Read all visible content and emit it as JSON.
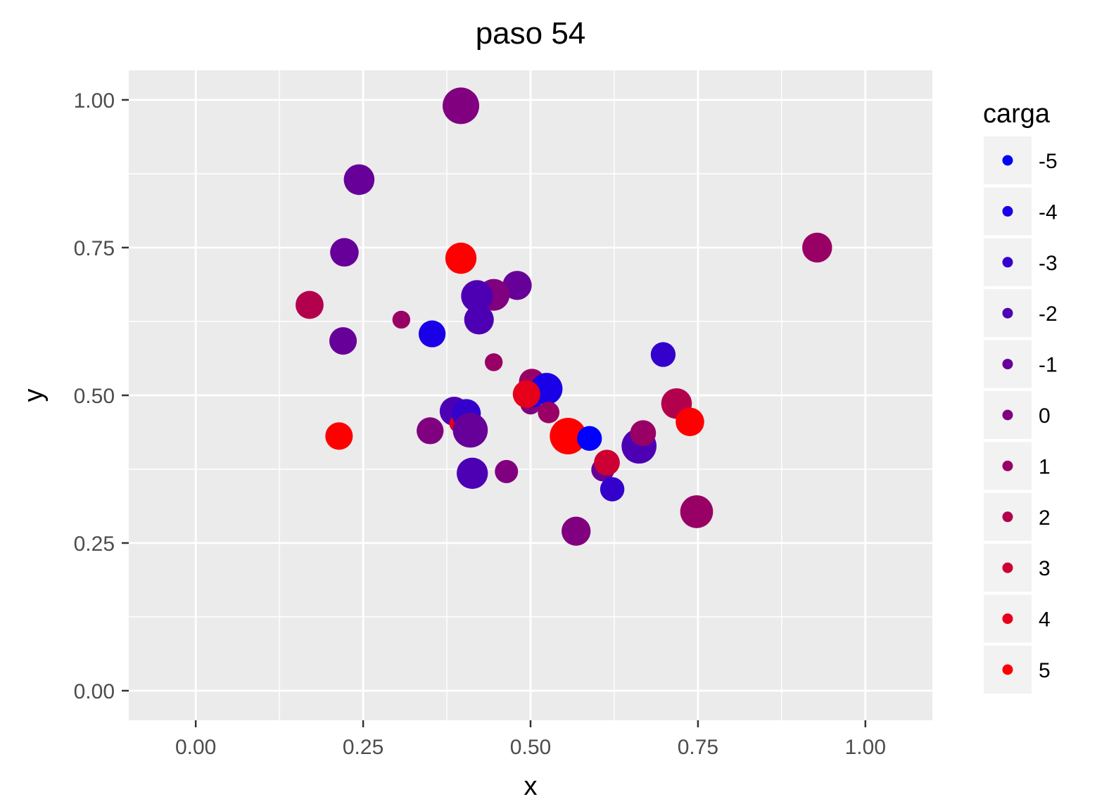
{
  "chart_data": {
    "type": "scatter",
    "title": "paso 54",
    "xlabel": "x",
    "ylabel": "y",
    "xlim": [
      -0.1,
      1.1
    ],
    "ylim": [
      -0.05,
      1.05
    ],
    "x_ticks": [
      "0.00",
      "0.25",
      "0.50",
      "0.75",
      "1.00"
    ],
    "y_ticks": [
      "0.00",
      "0.25",
      "0.50",
      "0.75",
      "1.00"
    ],
    "grid": true,
    "legend": {
      "title": "carga",
      "position": "right",
      "entries": [
        {
          "label": "-5",
          "color": "#0000ff"
        },
        {
          "label": "-4",
          "color": "#1a00e6"
        },
        {
          "label": "-3",
          "color": "#3300cc"
        },
        {
          "label": "-2",
          "color": "#4d00b3"
        },
        {
          "label": "-1",
          "color": "#660099"
        },
        {
          "label": "0",
          "color": "#800080"
        },
        {
          "label": "1",
          "color": "#990066"
        },
        {
          "label": "2",
          "color": "#b3004d"
        },
        {
          "label": "3",
          "color": "#cc0033"
        },
        {
          "label": "4",
          "color": "#e6001a"
        },
        {
          "label": "5",
          "color": "#ff0000"
        }
      ]
    },
    "points": [
      {
        "x": 0.396,
        "y": 0.99,
        "carga": 0,
        "size": 1.0
      },
      {
        "x": 0.244,
        "y": 0.865,
        "carga": -1,
        "size": 0.78
      },
      {
        "x": 0.222,
        "y": 0.742,
        "carga": -1,
        "size": 0.7
      },
      {
        "x": 0.396,
        "y": 0.732,
        "carga": 5,
        "size": 0.8
      },
      {
        "x": 0.928,
        "y": 0.75,
        "carga": 1,
        "size": 0.75
      },
      {
        "x": 0.17,
        "y": 0.653,
        "carga": 2,
        "size": 0.68
      },
      {
        "x": 0.48,
        "y": 0.686,
        "carga": -1,
        "size": 0.72
      },
      {
        "x": 0.445,
        "y": 0.67,
        "carga": 0,
        "size": 0.82
      },
      {
        "x": 0.42,
        "y": 0.668,
        "carga": -2,
        "size": 0.82
      },
      {
        "x": 0.423,
        "y": 0.628,
        "carga": -2,
        "size": 0.74
      },
      {
        "x": 0.307,
        "y": 0.628,
        "carga": 1,
        "size": 0.3
      },
      {
        "x": 0.22,
        "y": 0.592,
        "carga": -1,
        "size": 0.66
      },
      {
        "x": 0.353,
        "y": 0.604,
        "carga": -4,
        "size": 0.64
      },
      {
        "x": 0.445,
        "y": 0.556,
        "carga": 1,
        "size": 0.3
      },
      {
        "x": 0.698,
        "y": 0.569,
        "carga": -3,
        "size": 0.56
      },
      {
        "x": 0.502,
        "y": 0.523,
        "carga": 1,
        "size": 0.6
      },
      {
        "x": 0.524,
        "y": 0.511,
        "carga": -4,
        "size": 0.82
      },
      {
        "x": 0.5,
        "y": 0.485,
        "carga": 0,
        "size": 0.4
      },
      {
        "x": 0.527,
        "y": 0.471,
        "carga": 1,
        "size": 0.44
      },
      {
        "x": 0.505,
        "y": 0.5,
        "carga": -4,
        "size": 0.5
      },
      {
        "x": 0.494,
        "y": 0.502,
        "carga": 4,
        "size": 0.66
      },
      {
        "x": 0.718,
        "y": 0.486,
        "carga": 2,
        "size": 0.78
      },
      {
        "x": 0.738,
        "y": 0.455,
        "carga": 5,
        "size": 0.7
      },
      {
        "x": 0.386,
        "y": 0.473,
        "carga": -2,
        "size": 0.72
      },
      {
        "x": 0.392,
        "y": 0.452,
        "carga": 4,
        "size": 0.3
      },
      {
        "x": 0.404,
        "y": 0.469,
        "carga": -3,
        "size": 0.72
      },
      {
        "x": 0.41,
        "y": 0.441,
        "carga": -1,
        "size": 0.94
      },
      {
        "x": 0.35,
        "y": 0.44,
        "carga": 0,
        "size": 0.64
      },
      {
        "x": 0.214,
        "y": 0.431,
        "carga": 5,
        "size": 0.66
      },
      {
        "x": 0.556,
        "y": 0.431,
        "carga": 5,
        "size": 1.0
      },
      {
        "x": 0.588,
        "y": 0.427,
        "carga": -5,
        "size": 0.56
      },
      {
        "x": 0.662,
        "y": 0.414,
        "carga": -2,
        "size": 0.94
      },
      {
        "x": 0.668,
        "y": 0.436,
        "carga": 1,
        "size": 0.6
      },
      {
        "x": 0.608,
        "y": 0.374,
        "carga": -1,
        "size": 0.5
      },
      {
        "x": 0.614,
        "y": 0.386,
        "carga": 3,
        "size": 0.6
      },
      {
        "x": 0.413,
        "y": 0.368,
        "carga": -2,
        "size": 0.8
      },
      {
        "x": 0.464,
        "y": 0.371,
        "carga": 0,
        "size": 0.5
      },
      {
        "x": 0.622,
        "y": 0.341,
        "carga": -3,
        "size": 0.54
      },
      {
        "x": 0.748,
        "y": 0.303,
        "carga": 1,
        "size": 0.86
      },
      {
        "x": 0.568,
        "y": 0.27,
        "carga": 0,
        "size": 0.72
      }
    ]
  }
}
